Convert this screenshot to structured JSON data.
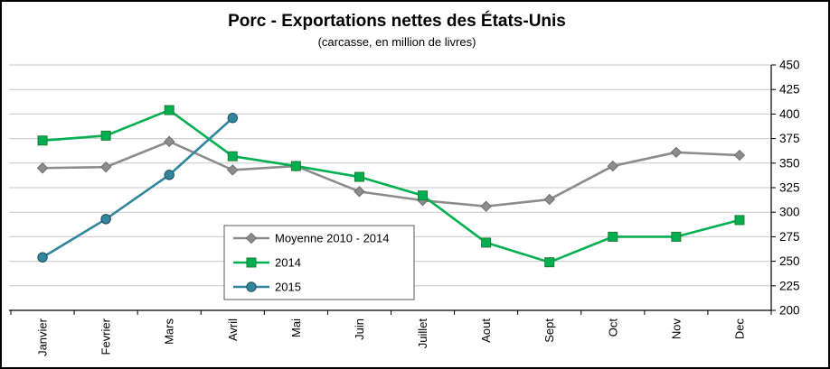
{
  "chart_data": {
    "type": "line",
    "title": "Porc - Exportations nettes des États-Unis",
    "subtitle": "(carcasse, en million de livres)",
    "categories": [
      "Janvier",
      "Fevrier",
      "Mars",
      "Avril",
      "Mai",
      "Juin",
      "Juillet",
      "Aout",
      "Sept",
      "Oct",
      "Nov",
      "Dec"
    ],
    "series": [
      {
        "name": "Moyenne 2010 - 2014",
        "marker": "diamond",
        "color": "#8c8c8c",
        "edge": "#6e6e6e",
        "values": [
          345,
          346,
          372,
          343,
          347,
          321,
          312,
          306,
          313,
          347,
          361,
          358
        ]
      },
      {
        "name": "2014",
        "marker": "square",
        "color": "#00b050",
        "edge": "#1e7b35",
        "values": [
          373,
          378,
          404,
          357,
          347,
          336,
          317,
          269,
          249,
          275,
          275,
          292
        ]
      },
      {
        "name": "2015",
        "marker": "circle",
        "color": "#31859c",
        "edge": "#1f4e5f",
        "values": [
          254,
          293,
          338,
          396
        ]
      }
    ],
    "ylim": [
      200,
      450
    ],
    "ytick_step": 25,
    "ytick_labels": [
      "200",
      "225",
      "250",
      "275",
      "300",
      "325",
      "350",
      "375",
      "400",
      "425",
      "450"
    ],
    "grid": true,
    "gridline_color": "#c8c8c8",
    "axis_color": "#000000",
    "legend_position": "center",
    "legend_border_color": "#595959",
    "background_color": "#ffffff"
  }
}
